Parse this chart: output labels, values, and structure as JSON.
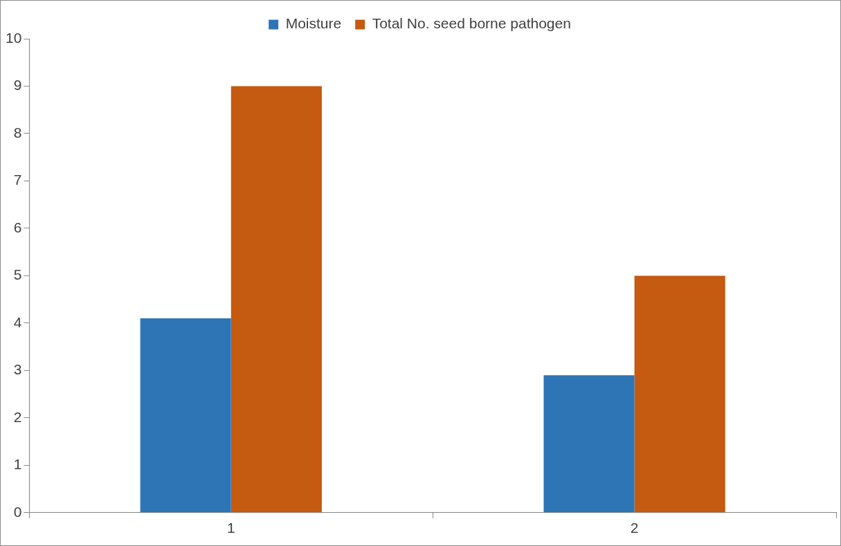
{
  "chart_data": {
    "type": "bar",
    "categories": [
      "1",
      "2"
    ],
    "series": [
      {
        "name": "Moisture",
        "color": "#2e75b6",
        "values": [
          4.1,
          2.9
        ]
      },
      {
        "name": "Total No. seed borne pathogen",
        "color": "#c55a11",
        "values": [
          9,
          5
        ]
      }
    ],
    "ylim": [
      0,
      10
    ],
    "yticks": [
      0,
      1,
      2,
      3,
      4,
      5,
      6,
      7,
      8,
      9,
      10
    ],
    "grid": false,
    "legend": "top"
  }
}
